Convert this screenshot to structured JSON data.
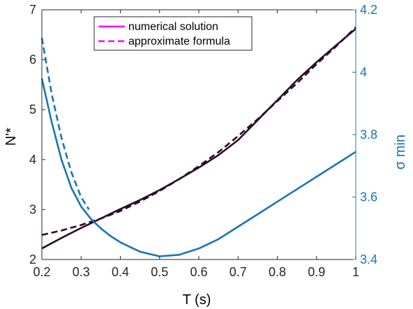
{
  "chart_data": {
    "type": "line",
    "xlabel": "T (s)",
    "ylabel_left": "N'*",
    "ylabel_right": "σ min",
    "xlim": [
      0.2,
      1
    ],
    "ylim_left": [
      2,
      7
    ],
    "ylim_right": [
      3.4,
      4.2
    ],
    "x_ticks": [
      "0.2",
      "0.3",
      "0.4",
      "0.5",
      "0.6",
      "0.7",
      "0.8",
      "0.9",
      "1"
    ],
    "y_ticks_left": [
      "2",
      "3",
      "4",
      "5",
      "6",
      "7"
    ],
    "y_ticks_right": [
      "3.4",
      "3.6",
      "3.8",
      "4",
      "4.2"
    ],
    "grid": false,
    "legend_position": "top-center",
    "legend": [
      {
        "label": "numerical solution",
        "style": "solid",
        "color": "#ff00ff"
      },
      {
        "label": "approximate formula",
        "style": "dashed",
        "color": "#ff00ff"
      }
    ],
    "series": [
      {
        "axis": "left",
        "style": "solid",
        "color": "#2a0a2a",
        "x": [
          0.2,
          0.25,
          0.3,
          0.35,
          0.4,
          0.45,
          0.5,
          0.55,
          0.6,
          0.65,
          0.7,
          0.75,
          0.8,
          0.85,
          0.9,
          0.95,
          1.0
        ],
        "y": [
          2.22,
          2.43,
          2.63,
          2.82,
          3.01,
          3.19,
          3.39,
          3.61,
          3.84,
          4.09,
          4.39,
          4.79,
          5.19,
          5.59,
          5.95,
          6.29,
          6.62
        ]
      },
      {
        "axis": "left",
        "style": "dashed",
        "color": "#2a0a2a",
        "x": [
          0.2,
          0.25,
          0.3,
          0.35,
          0.4,
          0.45,
          0.5,
          0.55,
          0.6,
          0.65,
          0.7,
          0.75,
          0.8,
          0.85,
          0.9,
          0.95,
          1.0
        ],
        "y": [
          2.49,
          2.58,
          2.69,
          2.82,
          2.97,
          3.16,
          3.37,
          3.61,
          3.87,
          4.15,
          4.47,
          4.81,
          5.17,
          5.53,
          5.91,
          6.27,
          6.65
        ]
      },
      {
        "axis": "right",
        "style": "solid",
        "color": "#1a74b5",
        "x": [
          0.2,
          0.225,
          0.25,
          0.275,
          0.3,
          0.325,
          0.35,
          0.375,
          0.4,
          0.45,
          0.5,
          0.55,
          0.6,
          0.65,
          0.7,
          0.75,
          0.8,
          0.85,
          0.9,
          0.95,
          1.0
        ],
        "y": [
          3.98,
          3.84,
          3.72,
          3.63,
          3.57,
          3.53,
          3.5,
          3.475,
          3.455,
          3.425,
          3.41,
          3.415,
          3.435,
          3.465,
          3.505,
          3.545,
          3.585,
          3.625,
          3.665,
          3.705,
          3.745
        ]
      },
      {
        "axis": "right",
        "style": "dashed",
        "color": "#1a74b5",
        "x": [
          0.2,
          0.225,
          0.25,
          0.275,
          0.3,
          0.32
        ],
        "y": [
          4.11,
          3.93,
          3.79,
          3.68,
          3.6,
          3.56
        ]
      }
    ]
  }
}
